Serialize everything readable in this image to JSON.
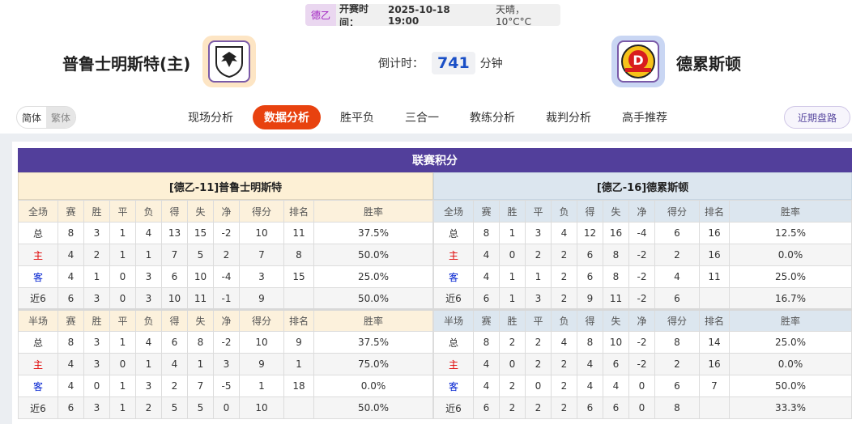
{
  "match": {
    "league": "德乙",
    "kickoff_label": "开赛时间：",
    "kickoff": "2025-10-18 19:00",
    "weather": "天晴，10°C°C",
    "home": "普鲁士明斯特(主)",
    "away": "德累斯顿",
    "countdown_label": "倒计时：",
    "countdown": "741",
    "countdown_unit": "分钟"
  },
  "nav": {
    "lang": [
      "简体",
      "繁体"
    ],
    "tabs": [
      "现场分析",
      "数据分析",
      "胜平负",
      "三合一",
      "教练分析",
      "裁判分析",
      "高手推荐"
    ],
    "active": "数据分析",
    "recent": "近期盘路"
  },
  "colors": {
    "accent": "#e8420f",
    "title_bg": "#523f9b",
    "home_label": "#e00000",
    "away_label": "#0020d0"
  },
  "standings": {
    "title": "联赛积分",
    "columns": [
      "赛",
      "胜",
      "平",
      "负",
      "得",
      "失",
      "净",
      "得分",
      "排名",
      "胜率"
    ],
    "teams": [
      {
        "header": "[德乙-11]普鲁士明斯特",
        "full": {
          "label": "全场",
          "rows": [
            [
              "总",
              "8",
              "3",
              "1",
              "4",
              "13",
              "15",
              "-2",
              "10",
              "11",
              "37.5%"
            ],
            [
              "主",
              "4",
              "2",
              "1",
              "1",
              "7",
              "5",
              "2",
              "7",
              "8",
              "50.0%"
            ],
            [
              "客",
              "4",
              "1",
              "0",
              "3",
              "6",
              "10",
              "-4",
              "3",
              "15",
              "25.0%"
            ],
            [
              "近6",
              "6",
              "3",
              "0",
              "3",
              "10",
              "11",
              "-1",
              "9",
              "",
              "50.0%"
            ]
          ]
        },
        "half": {
          "label": "半场",
          "rows": [
            [
              "总",
              "8",
              "3",
              "1",
              "4",
              "6",
              "8",
              "-2",
              "10",
              "9",
              "37.5%"
            ],
            [
              "主",
              "4",
              "3",
              "0",
              "1",
              "4",
              "1",
              "3",
              "9",
              "1",
              "75.0%"
            ],
            [
              "客",
              "4",
              "0",
              "1",
              "3",
              "2",
              "7",
              "-5",
              "1",
              "18",
              "0.0%"
            ],
            [
              "近6",
              "6",
              "3",
              "1",
              "2",
              "5",
              "5",
              "0",
              "10",
              "",
              "50.0%"
            ]
          ]
        }
      },
      {
        "header": "[德乙-16]德累斯顿",
        "full": {
          "label": "全场",
          "rows": [
            [
              "总",
              "8",
              "1",
              "3",
              "4",
              "12",
              "16",
              "-4",
              "6",
              "16",
              "12.5%"
            ],
            [
              "主",
              "4",
              "0",
              "2",
              "2",
              "6",
              "8",
              "-2",
              "2",
              "16",
              "0.0%"
            ],
            [
              "客",
              "4",
              "1",
              "1",
              "2",
              "6",
              "8",
              "-2",
              "4",
              "11",
              "25.0%"
            ],
            [
              "近6",
              "6",
              "1",
              "3",
              "2",
              "9",
              "11",
              "-2",
              "6",
              "",
              "16.7%"
            ]
          ]
        },
        "half": {
          "label": "半场",
          "rows": [
            [
              "总",
              "8",
              "2",
              "2",
              "4",
              "8",
              "10",
              "-2",
              "8",
              "14",
              "25.0%"
            ],
            [
              "主",
              "4",
              "0",
              "2",
              "2",
              "4",
              "6",
              "-2",
              "2",
              "16",
              "0.0%"
            ],
            [
              "客",
              "4",
              "2",
              "0",
              "2",
              "4",
              "4",
              "0",
              "6",
              "7",
              "50.0%"
            ],
            [
              "近6",
              "6",
              "2",
              "2",
              "2",
              "6",
              "6",
              "0",
              "8",
              "",
              "33.3%"
            ]
          ]
        }
      }
    ]
  }
}
